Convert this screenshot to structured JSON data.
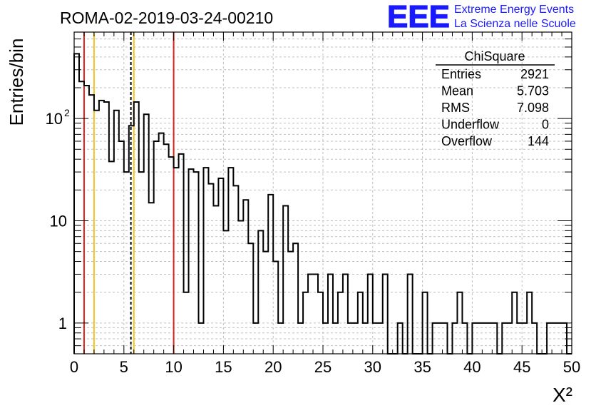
{
  "chart_data": {
    "type": "histogram",
    "title": "ROMA-02-2019-03-24-00210",
    "xlabel": "X²",
    "ylabel": "Entries/bin",
    "x_range": [
      0,
      50
    ],
    "y_range": [
      0.5,
      700
    ],
    "y_scale": "log",
    "grid": true,
    "x_ticks": [
      "0",
      "5",
      "10",
      "15",
      "20",
      "25",
      "30",
      "35",
      "40",
      "45",
      "50"
    ],
    "y_ticks": [
      {
        "value": 1,
        "label": "1"
      },
      {
        "value": 10,
        "label": "10"
      },
      {
        "value": 100,
        "label": "10",
        "exp": "2"
      }
    ],
    "bin_width": 0.5,
    "bin_start": 0,
    "values": [
      430,
      230,
      210,
      170,
      120,
      150,
      145,
      38,
      120,
      60,
      30,
      85,
      145,
      30,
      110,
      15,
      60,
      72,
      56,
      42,
      33,
      45,
      2,
      32,
      30,
      1,
      33,
      23,
      14,
      26,
      8,
      33,
      22,
      10,
      16,
      6,
      1,
      8,
      5,
      18,
      4,
      1,
      14,
      5,
      6,
      1,
      2,
      3,
      3,
      2,
      1,
      3,
      1,
      2,
      3,
      1,
      1,
      2,
      1,
      3,
      1,
      1,
      3,
      0,
      0,
      1,
      0,
      3,
      0,
      0,
      2,
      0,
      1,
      1,
      1,
      0,
      1,
      2,
      1,
      0,
      1,
      1,
      1,
      1,
      1,
      0,
      1,
      1,
      2,
      1,
      1,
      2,
      1,
      0,
      0,
      1,
      1,
      1,
      1,
      0
    ],
    "vertical_markers": [
      {
        "x": 1.0,
        "color": "#e0201b",
        "style": "solid"
      },
      {
        "x": 2.0,
        "color": "#f2c418",
        "style": "solid"
      },
      {
        "x": 5.703,
        "color": "#000000",
        "style": "dashed"
      },
      {
        "x": 6.0,
        "color": "#f2c418",
        "style": "solid"
      },
      {
        "x": 10.0,
        "color": "#e0201b",
        "style": "solid"
      }
    ],
    "stats_box": {
      "title": "ChiSquare",
      "rows": [
        {
          "label": "Entries",
          "value": "2921"
        },
        {
          "label": "Mean",
          "value": "5.703"
        },
        {
          "label": "RMS",
          "value": "7.098"
        },
        {
          "label": "Underflow",
          "value": "0"
        },
        {
          "label": "Overflow",
          "value": "144"
        }
      ]
    }
  },
  "logo": {
    "acronym": "EEE",
    "line1": "Extreme Energy Events",
    "line2": "La Scienza nelle Scuole",
    "color": "#1a1aff"
  }
}
